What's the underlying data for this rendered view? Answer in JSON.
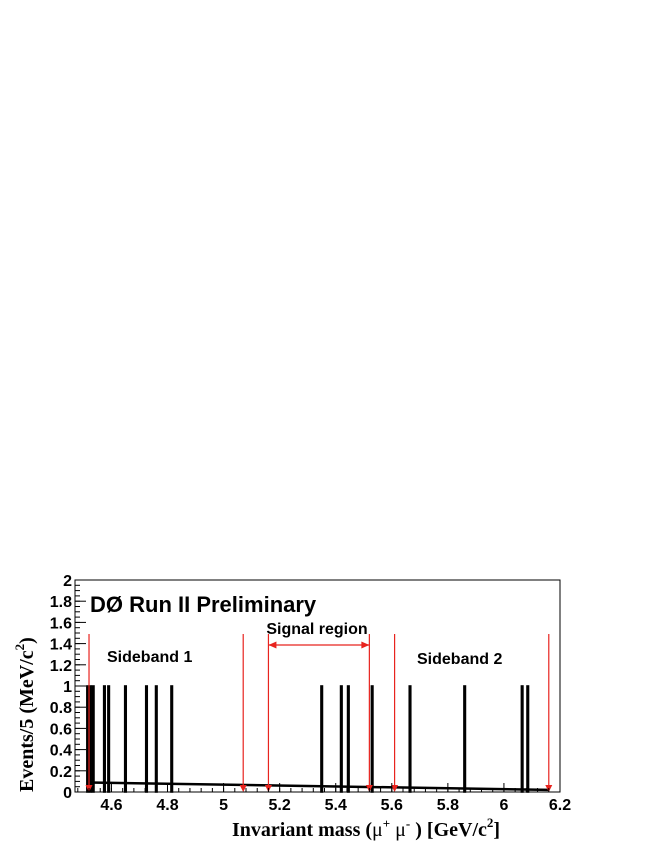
{
  "chart_data": {
    "type": "bar",
    "title": "DØ Run II Preliminary",
    "xlabel_parts": {
      "pre": "Invariant mass (",
      "mu1": "μ",
      "sup1": "+",
      "mu2": " μ",
      "sup2": "-",
      "post": " ) [GeV/c",
      "sup3": "2",
      "end": "]"
    },
    "ylabel_parts": {
      "pre": "Events/5 (MeV/c",
      "sup": "2",
      "end": ")"
    },
    "xlim": [
      4.47,
      6.2
    ],
    "ylim": [
      0,
      2
    ],
    "x_ticks": [
      4.6,
      4.8,
      5,
      5.2,
      5.4,
      5.6,
      5.8,
      6,
      6.2
    ],
    "x_tick_labels": [
      "4.6",
      "4.8",
      "5",
      "5.2",
      "5.4",
      "5.6",
      "5.8",
      "6",
      "6.2"
    ],
    "y_ticks": [
      0,
      0.2,
      0.4,
      0.6,
      0.8,
      1,
      1.2,
      1.4,
      1.6,
      1.8,
      2
    ],
    "y_tick_labels": [
      "0",
      "0.2",
      "0.4",
      "0.6",
      "0.8",
      "1",
      "1.2",
      "1.4",
      "1.6",
      "1.8",
      "2"
    ],
    "events": {
      "bin_width": 0.005,
      "x": [
        4.515,
        4.525,
        4.535,
        4.575,
        4.59,
        4.65,
        4.725,
        4.76,
        4.815,
        5.35,
        5.42,
        5.445,
        5.53,
        5.665,
        5.86,
        6.065,
        6.085
      ],
      "values": [
        1,
        1,
        1,
        1,
        1,
        1,
        1,
        1,
        1,
        1,
        1,
        1,
        1,
        1,
        1,
        1,
        1
      ]
    },
    "fit_line": {
      "x": [
        4.52,
        6.16
      ],
      "y": [
        0.09,
        0.02
      ]
    },
    "region_lines": [
      4.52,
      5.07,
      5.16,
      5.52,
      5.61,
      6.16
    ],
    "region_labels": {
      "sideband1": "Sideband 1",
      "signal": "Signal region",
      "sideband2": "Sideband 2"
    },
    "colors": {
      "bar_fill": "#3a5a99",
      "bar_outline": "#000000",
      "region": "#e8231e",
      "fit": "#000000",
      "axis": "#000000"
    }
  }
}
